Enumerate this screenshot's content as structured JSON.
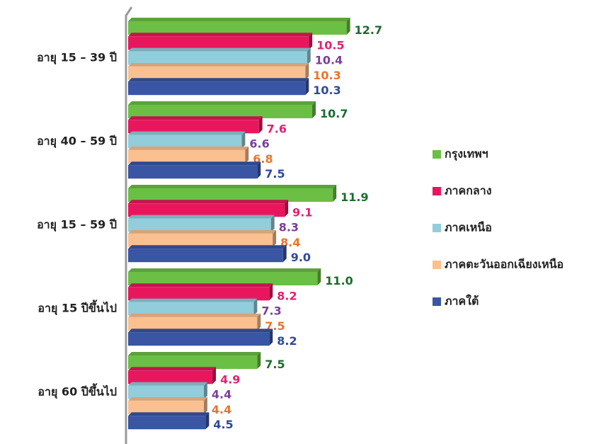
{
  "chart_data": {
    "type": "bar",
    "orientation": "horizontal",
    "categories": [
      "อายุ 15 – 39 ปี",
      "อายุ 40 – 59 ปี",
      "อายุ 15 – 59 ปี",
      "อายุ 15 ปีขึ้นไป",
      "อายุ 60 ปีขึ้นไป"
    ],
    "series": [
      {
        "name": "กรุงเทพฯ",
        "color": "#6cbf45",
        "label_color": "#1d6b2e",
        "values": [
          12.7,
          10.7,
          11.9,
          11.0,
          7.5
        ],
        "value_labels": [
          "12.7",
          "10.7",
          "11.9",
          "11.0",
          "7.5"
        ]
      },
      {
        "name": "ภาคกลาง",
        "color": "#e8175d",
        "label_color": "#e0226e",
        "values": [
          10.5,
          7.6,
          9.1,
          8.2,
          4.9
        ],
        "value_labels": [
          "10.5",
          "7.6",
          "9.1",
          "8.2",
          "4.9"
        ]
      },
      {
        "name": "ภาคเหนือ",
        "color": "#92cddc",
        "label_color": "#7a3f9a",
        "values": [
          10.4,
          6.6,
          8.3,
          7.3,
          4.4
        ],
        "value_labels": [
          "10.4",
          "6.6",
          "8.3",
          "7.3",
          "4.4"
        ]
      },
      {
        "name": "ภาคตะวันออกเฉียงเหนือ",
        "color": "#fac090",
        "label_color": "#e8742a",
        "values": [
          10.3,
          6.8,
          8.4,
          7.5,
          4.4
        ],
        "value_labels": [
          "10.3",
          "6.8",
          "8.4",
          "7.5",
          "4.4"
        ]
      },
      {
        "name": "ภาคใต้",
        "color": "#3a55a4",
        "label_color": "#2e4a9a",
        "values": [
          10.3,
          7.5,
          9.0,
          8.2,
          4.5
        ],
        "value_labels": [
          "10.3",
          "7.5",
          "9.0",
          "8.2",
          "4.5"
        ]
      }
    ],
    "legend": "right"
  }
}
